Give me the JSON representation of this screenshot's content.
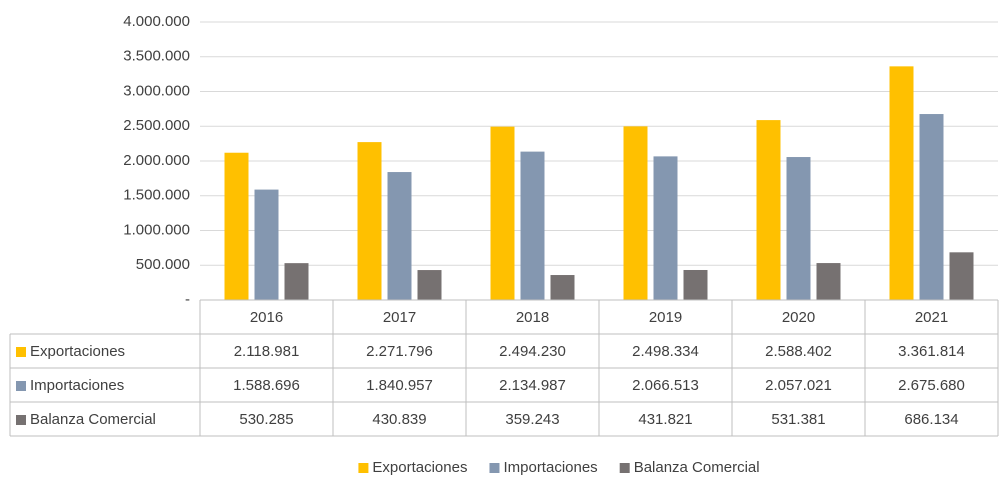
{
  "chart_data": {
    "type": "bar",
    "categories": [
      "2016",
      "2017",
      "2018",
      "2019",
      "2020",
      "2021"
    ],
    "series": [
      {
        "name": "Exportaciones",
        "color": "#ffc000",
        "values": [
          2118981,
          2271796,
          2494230,
          2498334,
          2588402,
          3361814
        ],
        "value_labels": [
          "2.118.981",
          "2.271.796",
          "2.494.230",
          "2.498.334",
          "2.588.402",
          "3.361.814"
        ]
      },
      {
        "name": "Importaciones",
        "color": "#8497b0",
        "values": [
          1588696,
          1840957,
          2134987,
          2066513,
          2057021,
          2675680
        ],
        "value_labels": [
          "1.588.696",
          "1.840.957",
          "2.134.987",
          "2.066.513",
          "2.057.021",
          "2.675.680"
        ]
      },
      {
        "name": "Balanza Comercial",
        "color": "#767171",
        "values": [
          530285,
          430839,
          359243,
          431821,
          531381,
          686134
        ],
        "value_labels": [
          "530.285",
          "430.839",
          "359.243",
          "431.821",
          "531.381",
          "686.134"
        ]
      }
    ],
    "ylim": [
      0,
      4000000
    ],
    "yticks": [
      {
        "value": 0,
        "label": "-"
      },
      {
        "value": 500000,
        "label": "500.000"
      },
      {
        "value": 1000000,
        "label": "1.000.000"
      },
      {
        "value": 1500000,
        "label": "1.500.000"
      },
      {
        "value": 2000000,
        "label": "2.000.000"
      },
      {
        "value": 2500000,
        "label": "2.500.000"
      },
      {
        "value": 3000000,
        "label": "3.000.000"
      },
      {
        "value": 3500000,
        "label": "3.500.000"
      },
      {
        "value": 4000000,
        "label": "4.000.000"
      }
    ],
    "grid": true,
    "data_table": true,
    "legend": "bottom"
  }
}
